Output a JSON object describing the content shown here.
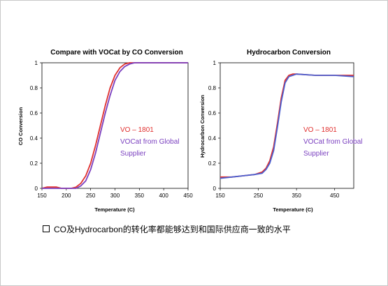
{
  "caption": "CO及Hydrocarbon的转化率都能够达到和国际供应商一致的水平",
  "chart_data": [
    {
      "type": "line",
      "title": "Compare with VOCat by CO Conversion",
      "xlabel": "Temperature (C)",
      "ylabel": "CO Conversion",
      "xlim": [
        150,
        450
      ],
      "ylim": [
        0,
        1
      ],
      "xticks": [
        "150",
        "200",
        "250",
        "300",
        "350",
        "400",
        "450"
      ],
      "yticks": [
        "0",
        "0.2",
        "0.4",
        "0.6",
        "0.8",
        "1"
      ],
      "legend_position": "inside-right",
      "annotation": [
        "VO – 1801",
        "VOCat from Global",
        "Supplier"
      ],
      "series": [
        {
          "name": "VO – 1801",
          "color": "#e0302f",
          "x": [
            150,
            160,
            170,
            180,
            190,
            200,
            210,
            220,
            230,
            240,
            250,
            260,
            270,
            280,
            290,
            300,
            310,
            320,
            330,
            340,
            350,
            450
          ],
          "y": [
            0.0,
            0.01,
            0.01,
            0.01,
            0.0,
            0.0,
            0.0,
            0.01,
            0.04,
            0.1,
            0.2,
            0.34,
            0.5,
            0.66,
            0.8,
            0.9,
            0.96,
            0.99,
            1.0,
            1.0,
            1.0,
            1.0
          ]
        },
        {
          "name": "VOCat from Global Supplier",
          "color": "#7a3fbf",
          "x": [
            150,
            160,
            170,
            180,
            190,
            200,
            210,
            220,
            230,
            240,
            250,
            260,
            270,
            280,
            290,
            300,
            310,
            320,
            330,
            340,
            350,
            360,
            450
          ],
          "y": [
            0.0,
            0.0,
            0.0,
            0.0,
            0.0,
            0.0,
            0.0,
            0.0,
            0.02,
            0.06,
            0.15,
            0.28,
            0.44,
            0.6,
            0.74,
            0.86,
            0.93,
            0.97,
            0.99,
            1.0,
            1.0,
            1.0,
            1.0
          ]
        }
      ]
    },
    {
      "type": "line",
      "title": "Hydrocarbon Conversion",
      "xlabel": "Temperature (C)",
      "ylabel": "Hydrocarbon Conversion",
      "xlim": [
        150,
        500
      ],
      "ylim": [
        0,
        1
      ],
      "xticks": [
        "150",
        "250",
        "350",
        "450"
      ],
      "yticks": [
        "0",
        "0.2",
        "0.4",
        "0.6",
        "0.8",
        "1"
      ],
      "legend_position": "inside-right",
      "annotation": [
        "VO – 1801",
        "VOCat from Global",
        "Supplier"
      ],
      "series": [
        {
          "name": "VO – 1801",
          "color": "#e0302f",
          "x": [
            150,
            180,
            210,
            240,
            260,
            270,
            280,
            290,
            300,
            310,
            320,
            330,
            340,
            350,
            400,
            450,
            500
          ],
          "y": [
            0.09,
            0.09,
            0.1,
            0.11,
            0.13,
            0.16,
            0.22,
            0.33,
            0.52,
            0.72,
            0.86,
            0.9,
            0.91,
            0.91,
            0.9,
            0.9,
            0.9
          ]
        },
        {
          "name": "VOCat from Global Supplier",
          "color": "#4a5fd0",
          "x": [
            150,
            180,
            210,
            240,
            260,
            270,
            280,
            290,
            300,
            310,
            320,
            330,
            340,
            350,
            400,
            450,
            500
          ],
          "y": [
            0.08,
            0.09,
            0.1,
            0.11,
            0.12,
            0.15,
            0.2,
            0.3,
            0.49,
            0.69,
            0.84,
            0.89,
            0.9,
            0.91,
            0.9,
            0.9,
            0.89
          ]
        }
      ]
    }
  ]
}
